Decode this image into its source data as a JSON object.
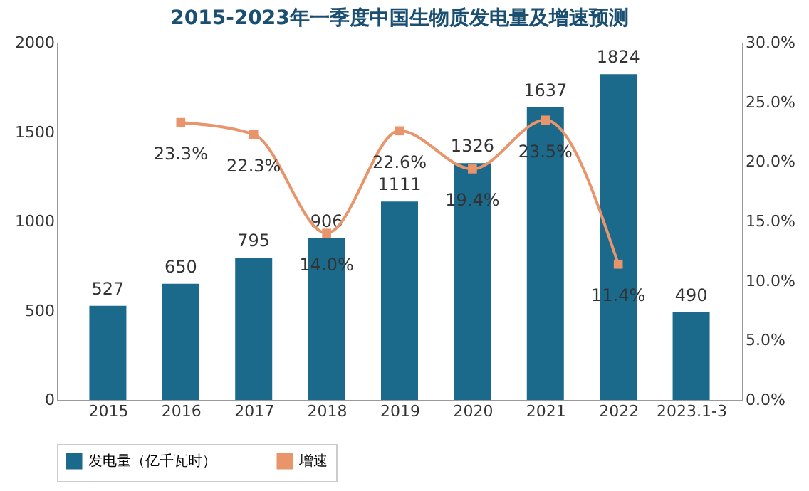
{
  "chart_data": {
    "type": "bar",
    "title": "2015-2023年一季度中国生物质发电量及增速预测",
    "categories": [
      "2015",
      "2016",
      "2017",
      "2018",
      "2019",
      "2020",
      "2021",
      "2022",
      "2023.1-3"
    ],
    "series": [
      {
        "name": "发电量（亿千瓦时）",
        "color": "#1b6a8c",
        "values": [
          527,
          650,
          795,
          906,
          1111,
          1326,
          1637,
          1824,
          490
        ],
        "value_labels": [
          "527",
          "650",
          "795",
          "906",
          "1111",
          "1326",
          "1637",
          "1824",
          "490"
        ]
      },
      {
        "name": "增速",
        "type": "line",
        "axis": "y2",
        "color": "#e8956b",
        "marker": "square",
        "values": [
          null,
          23.3,
          22.3,
          14.0,
          22.6,
          19.4,
          23.5,
          11.4,
          null
        ],
        "value_labels": [
          null,
          "23.3%",
          "22.3%",
          "14.0%",
          "22.6%",
          "19.4%",
          "23.5%",
          "11.4%",
          null
        ]
      }
    ],
    "ylim": [
      0,
      2000
    ],
    "yticks": [
      0,
      500,
      1000,
      1500,
      2000
    ],
    "y2lim": [
      0,
      30
    ],
    "y2ticks": [
      {
        "value": 0,
        "label": "0.0%"
      },
      {
        "value": 5,
        "label": "5.0%"
      },
      {
        "value": 10,
        "label": "10.0%"
      },
      {
        "value": 15,
        "label": "15.0%"
      },
      {
        "value": 20,
        "label": "20.0%"
      },
      {
        "value": 25,
        "label": "25.0%"
      },
      {
        "value": 30,
        "label": "30.0%"
      }
    ],
    "grid": false,
    "legend": "bottom"
  }
}
